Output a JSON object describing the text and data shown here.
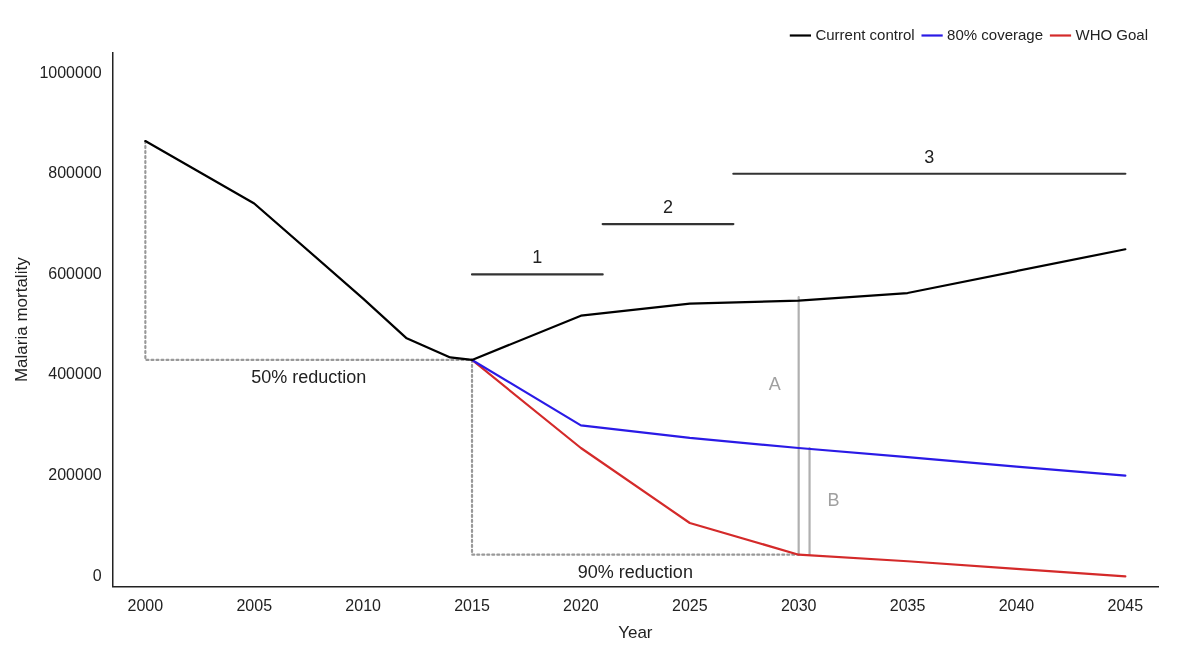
{
  "chart_data": {
    "type": "line",
    "xlabel": "Year",
    "ylabel": "Malaria mortality",
    "xlim": [
      1998.5,
      2046.5
    ],
    "xticks": [
      2000,
      2005,
      2010,
      2015,
      2020,
      2025,
      2030,
      2035,
      2040,
      2045
    ],
    "ylim": [
      -20000,
      1040000
    ],
    "yticks": [
      0,
      200000,
      400000,
      600000,
      800000,
      1000000
    ],
    "grid": false,
    "legend": "top right",
    "marker": "none",
    "line_style": "solid",
    "series": [
      {
        "name": "Current control",
        "color": "#000000",
        "x": [
          2000,
          2005,
          2010,
          2012,
          2014,
          2015,
          2020,
          2025,
          2030,
          2035,
          2045
        ],
        "values": [
          865000,
          741000,
          552000,
          473000,
          435000,
          430000,
          518000,
          542000,
          548000,
          563000,
          650000
        ]
      },
      {
        "name": "80% coverage",
        "color": "#2a1ae6",
        "x": [
          2015,
          2020,
          2025,
          2030,
          2035,
          2040,
          2045
        ],
        "values": [
          430000,
          300000,
          275000,
          255000,
          237000,
          218000,
          200000
        ]
      },
      {
        "name": "WHO Goal",
        "color": "#d42a2a",
        "x": [
          2015,
          2020,
          2025,
          2030,
          2035,
          2040,
          2045
        ],
        "values": [
          430000,
          255000,
          106000,
          43000,
          30000,
          15000,
          0
        ]
      },
      {
        "color": "#999999",
        "line_style": "dotted",
        "x": [
          2000,
          2000,
          2015
        ],
        "values": [
          865000,
          430000,
          430000
        ]
      },
      {
        "color": "#999999",
        "line_style": "dotted",
        "x": [
          2015,
          2015,
          2030
        ],
        "values": [
          430000,
          43000,
          43000
        ]
      },
      {
        "color": "#333333",
        "x": [
          2015,
          2021
        ],
        "values": [
          600000,
          600000
        ]
      },
      {
        "color": "#333333",
        "x": [
          2021,
          2027
        ],
        "values": [
          700000,
          700000
        ]
      },
      {
        "color": "#333333",
        "x": [
          2027,
          2045
        ],
        "values": [
          800000,
          800000
        ]
      },
      {
        "color": "#b0b0b0",
        "x": [
          2030,
          2030
        ],
        "values": [
          43000,
          555000
        ]
      },
      {
        "color": "#b0b0b0",
        "x": [
          2030.5,
          2030.5
        ],
        "values": [
          43000,
          255000
        ]
      }
    ],
    "annotations": [
      {
        "text": "50% reduction",
        "x": 2007.5,
        "y": 430000
      },
      {
        "text": "90% reduction",
        "x": 2022.5,
        "y": 43000
      },
      {
        "text": "1",
        "x": 2018,
        "y": 600000
      },
      {
        "text": "2",
        "x": 2024,
        "y": 700000
      },
      {
        "text": "3",
        "x": 2036,
        "y": 800000
      },
      {
        "text": "A",
        "x": 2030,
        "y": 380000
      },
      {
        "text": "B",
        "x": 2030.5,
        "y": 150000
      }
    ]
  }
}
